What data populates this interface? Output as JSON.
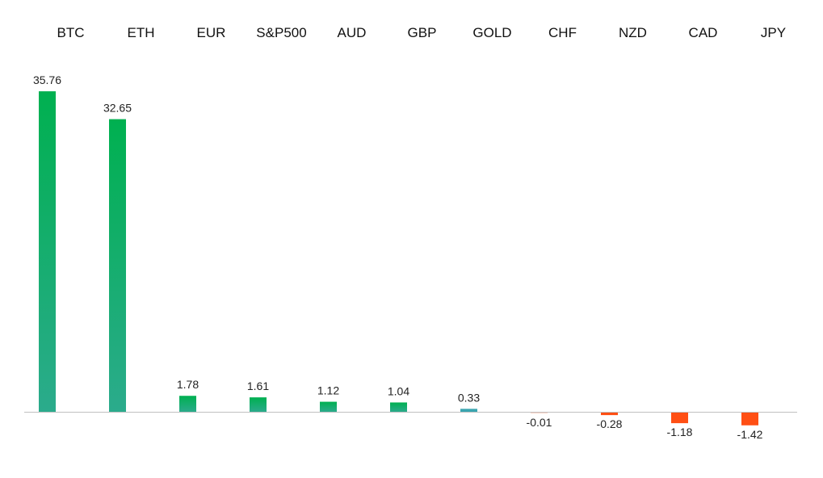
{
  "chart_data": {
    "type": "bar",
    "title": "",
    "xlabel": "",
    "ylabel": "",
    "categories": [
      "BTC",
      "ETH",
      "EUR",
      "S&P500",
      "AUD",
      "GBP",
      "GOLD",
      "CHF",
      "NZD",
      "CAD",
      "JPY"
    ],
    "values": [
      35.76,
      32.65,
      1.78,
      1.61,
      1.12,
      1.04,
      0.33,
      -0.01,
      -0.28,
      -1.18,
      -1.42
    ],
    "value_labels": [
      "35.76",
      "32.65",
      "1.78",
      "1.61",
      "1.12",
      "1.04",
      "0.33",
      "-0.01",
      "-0.28",
      "-1.18",
      "-1.42"
    ],
    "category_axis_position": "top",
    "grid": false,
    "legend": "none",
    "colors": {
      "positive_top": "#00b050",
      "positive_bottom": "#2bab8c",
      "small_positive": "#3aa5b0",
      "negative": "#ff4f14",
      "axis": "#c0c0c0"
    }
  }
}
